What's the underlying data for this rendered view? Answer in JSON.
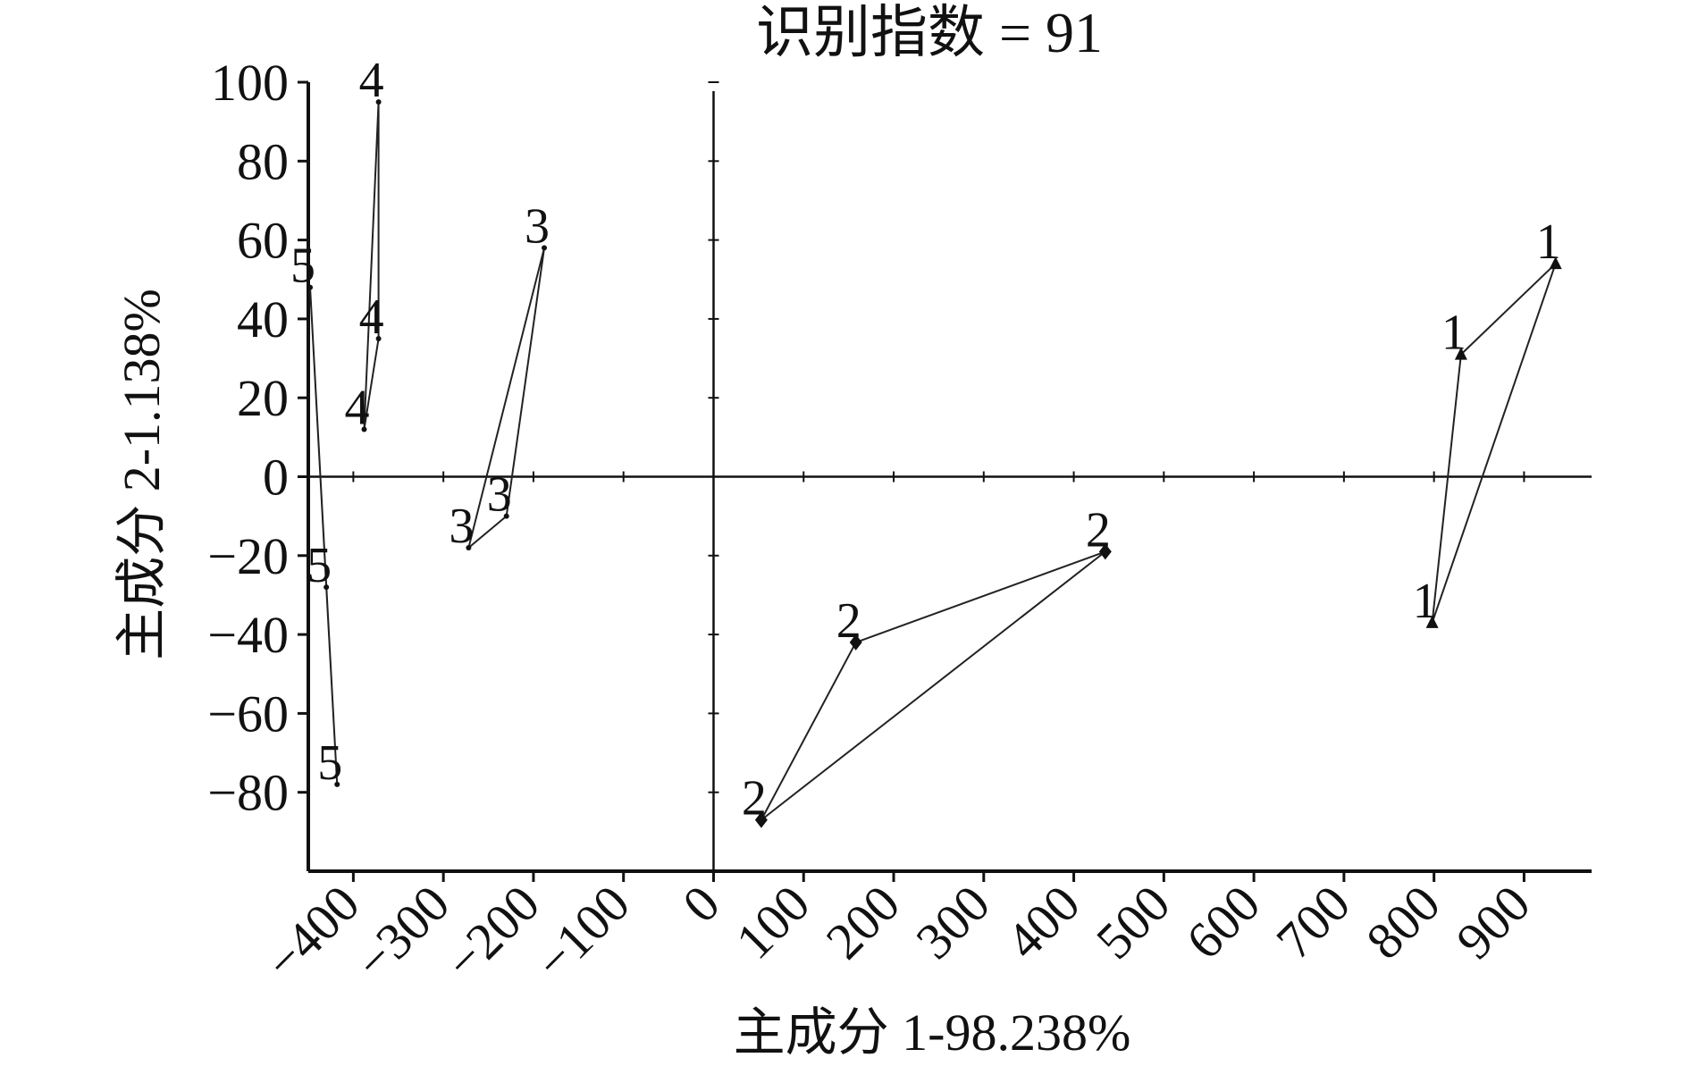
{
  "chart_data": {
    "type": "scatter",
    "title": "识别指数 = 91",
    "xlabel": "主成分 1-98.238%",
    "ylabel": "主成分 2-1.138%",
    "xlim": [
      -450,
      975
    ],
    "ylim": [
      -100,
      100
    ],
    "x_ticks": [
      -400,
      -300,
      -200,
      -100,
      0,
      100,
      200,
      300,
      400,
      500,
      600,
      700,
      800,
      900
    ],
    "x_tick_labels": [
      "−400",
      "−300",
      "−200",
      "−100",
      "0",
      "100",
      "200",
      "300",
      "400",
      "500",
      "600",
      "700",
      "800",
      "900"
    ],
    "y_ticks": [
      100,
      80,
      60,
      40,
      20,
      0,
      -20,
      -40,
      -60,
      -80
    ],
    "y_tick_labels": [
      "100",
      "80",
      "60",
      "40",
      "20",
      "0",
      "−20",
      "−40",
      "−60",
      "−80"
    ],
    "grid": false,
    "series": [
      {
        "name": "1",
        "marker": "triangle",
        "x": [
          935,
          830,
          798
        ],
        "y": [
          54,
          31,
          -37
        ]
      },
      {
        "name": "2",
        "marker": "diamond",
        "x": [
          435,
          158,
          53
        ],
        "y": [
          -19,
          -42,
          -87
        ]
      },
      {
        "name": "3",
        "marker": "small",
        "x": [
          -188,
          -272,
          -230
        ],
        "y": [
          58,
          -18,
          -10
        ]
      },
      {
        "name": "4",
        "marker": "small",
        "x": [
          -372,
          -388,
          -372
        ],
        "y": [
          95,
          12,
          35
        ]
      },
      {
        "name": "5",
        "marker": "small",
        "x": [
          -448,
          -430,
          -418
        ],
        "y": [
          48,
          -28,
          -78
        ]
      }
    ]
  }
}
